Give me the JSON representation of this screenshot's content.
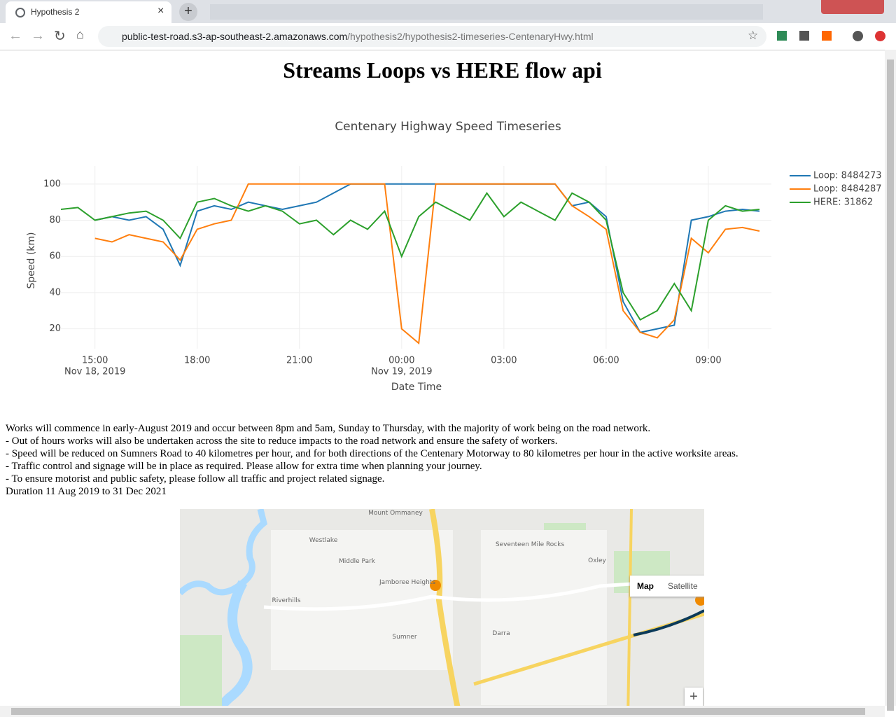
{
  "browser": {
    "tab_title": "Hypothesis 2",
    "url_host": "public-test-road.s3-ap-southeast-2.amazonaws.com",
    "url_path": "/hypothesis2/hypothesis2-timeseries-CentenaryHwy.html"
  },
  "page": {
    "heading": "Streams Loops vs HERE flow api",
    "text": [
      "Works will commence in early-August 2019 and occur between 8pm and 5am, Sunday to Thursday, with the majority of work being on the road network.",
      "- Out of hours works will also be undertaken across the site to reduce impacts to the road network and ensure the safety of workers.",
      "- Speed will be reduced on Sumners Road to 40 kilometres per hour, and for both directions of the Centenary Motorway to 80 kilometres per hour in the active worksite areas.",
      "- Traffic control and signage will be in place as required. Please allow for extra time when planning your journey.",
      "- To ensure motorist and public safety, please follow all traffic and project related signage.",
      "Duration 11 Aug 2019 to 31 Dec 2021"
    ]
  },
  "map": {
    "buttons": [
      "Map",
      "Satellite"
    ],
    "zoom": "+",
    "places": [
      "Mount Ommaney",
      "Westlake",
      "Middle Park",
      "Jamboree Heights",
      "Seventeen Mile Rocks",
      "Oxley",
      "Riverhills",
      "Sumner",
      "Darra"
    ]
  },
  "chart_data": {
    "type": "line",
    "title": "Centenary Highway Speed Timeseries",
    "x_label": "Date Time",
    "y_label": "Speed (km)",
    "legend": "right",
    "grid": true,
    "x": [
      "2019-11-18 14:00",
      "2019-11-18 14:30",
      "2019-11-18 15:00",
      "2019-11-18 15:30",
      "2019-11-18 16:00",
      "2019-11-18 16:30",
      "2019-11-18 17:00",
      "2019-11-18 17:30",
      "2019-11-18 18:00",
      "2019-11-18 18:30",
      "2019-11-18 19:00",
      "2019-11-18 19:30",
      "2019-11-18 20:00",
      "2019-11-18 20:30",
      "2019-11-18 21:00",
      "2019-11-18 21:30",
      "2019-11-18 22:00",
      "2019-11-18 22:30",
      "2019-11-18 23:00",
      "2019-11-18 23:30",
      "2019-11-19 00:00",
      "2019-11-19 00:30",
      "2019-11-19 01:00",
      "2019-11-19 01:30",
      "2019-11-19 02:00",
      "2019-11-19 02:30",
      "2019-11-19 03:00",
      "2019-11-19 03:30",
      "2019-11-19 04:00",
      "2019-11-19 04:30",
      "2019-11-19 05:00",
      "2019-11-19 05:30",
      "2019-11-19 06:00",
      "2019-11-19 06:30",
      "2019-11-19 07:00",
      "2019-11-19 07:30",
      "2019-11-19 08:00",
      "2019-11-19 08:30",
      "2019-11-19 09:00",
      "2019-11-19 09:30",
      "2019-11-19 10:00",
      "2019-11-19 10:30"
    ],
    "xlim": [
      "2019-11-18 14:00",
      "2019-11-19 10:51"
    ],
    "xticks": [
      {
        "value": "2019-11-18 15:00",
        "label": "15:00",
        "date": "Nov 18, 2019"
      },
      {
        "value": "2019-11-18 18:00",
        "label": "18:00"
      },
      {
        "value": "2019-11-18 21:00",
        "label": "21:00"
      },
      {
        "value": "2019-11-19 00:00",
        "label": "00:00",
        "date": "Nov 19, 2019"
      },
      {
        "value": "2019-11-19 03:00",
        "label": "03:00"
      },
      {
        "value": "2019-11-19 06:00",
        "label": "06:00"
      },
      {
        "value": "2019-11-19 09:00",
        "label": "09:00"
      }
    ],
    "ylim": [
      9,
      110
    ],
    "yticks": [
      20,
      40,
      60,
      80,
      100
    ],
    "series": [
      {
        "name": "Loop: 8484273",
        "color": "#1f77b4",
        "values": [
          null,
          null,
          80,
          82,
          80,
          82,
          75,
          55,
          85,
          88,
          86,
          90,
          88,
          86,
          88,
          90,
          95,
          100,
          100,
          100,
          100,
          100,
          100,
          100,
          100,
          100,
          100,
          100,
          100,
          100,
          88,
          90,
          82,
          35,
          18,
          20,
          22,
          80,
          82,
          85,
          86,
          85
        ]
      },
      {
        "name": "Loop: 8484287",
        "color": "#ff7f0e",
        "values": [
          null,
          null,
          70,
          68,
          72,
          70,
          68,
          58,
          75,
          78,
          80,
          100,
          100,
          100,
          100,
          100,
          100,
          100,
          100,
          100,
          20,
          12,
          100,
          100,
          100,
          100,
          100,
          100,
          100,
          100,
          88,
          82,
          75,
          30,
          18,
          15,
          25,
          70,
          62,
          75,
          76,
          74
        ]
      },
      {
        "name": "HERE: 31862",
        "color": "#2ca02c",
        "values": [
          86,
          87,
          80,
          82,
          84,
          85,
          80,
          70,
          90,
          92,
          88,
          85,
          88,
          85,
          78,
          80,
          72,
          80,
          75,
          85,
          60,
          82,
          90,
          85,
          80,
          95,
          82,
          90,
          85,
          80,
          95,
          90,
          80,
          40,
          25,
          30,
          45,
          30,
          80,
          88,
          85,
          86
        ]
      }
    ]
  }
}
